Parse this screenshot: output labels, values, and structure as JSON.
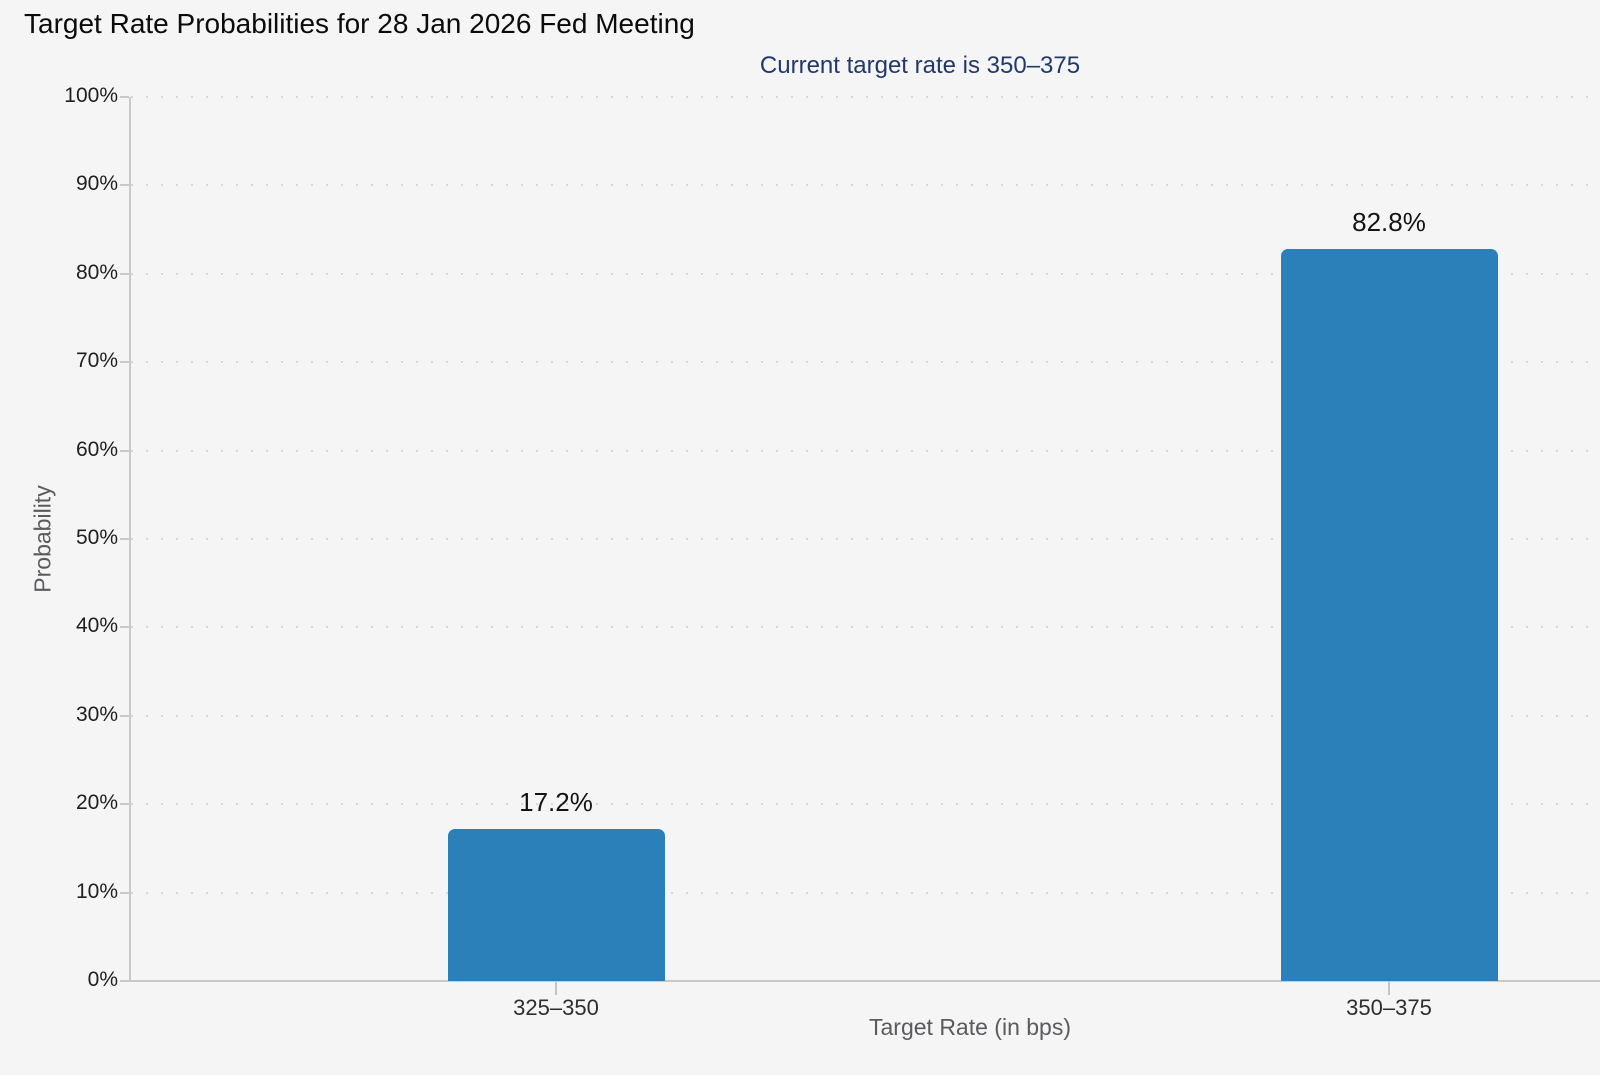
{
  "chart_data": {
    "type": "bar",
    "title": "Target Rate Probabilities for 28 Jan 2026 Fed Meeting",
    "subtitle": "Current target rate is 350–375",
    "categories": [
      "325–350",
      "350–375"
    ],
    "values": [
      17.2,
      82.8
    ],
    "value_labels": [
      "17.2%",
      "82.8%"
    ],
    "xlabel": "Target Rate (in bps)",
    "ylabel": "Probability",
    "ylim": [
      0,
      100
    ],
    "yticks": [
      0,
      10,
      20,
      30,
      40,
      50,
      60,
      70,
      80,
      90,
      100
    ],
    "ytick_labels": [
      "0%",
      "10%",
      "20%",
      "30%",
      "40%",
      "50%",
      "60%",
      "70%",
      "80%",
      "90%",
      "100%"
    ],
    "grid": "dotted-horizontal",
    "legend": "none",
    "bar_color": "#2b80b9",
    "subtitle_color": "#21396a"
  }
}
